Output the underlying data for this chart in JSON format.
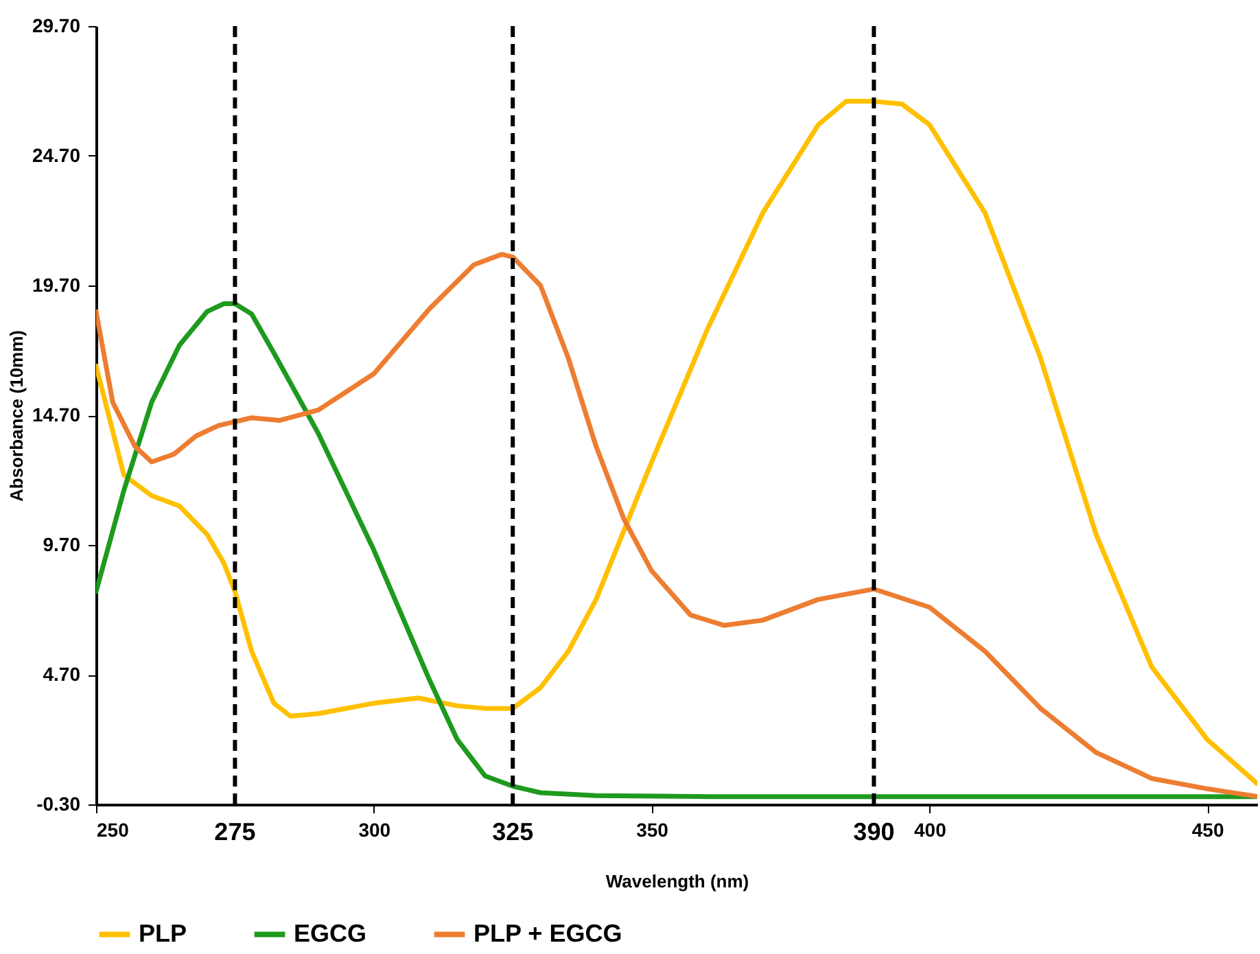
{
  "chart_data": {
    "type": "line",
    "xlabel": "Wavelength (nm)",
    "ylabel": "Absorbance (10mm)",
    "legend": "bottom",
    "xlim": [
      250,
      459
    ],
    "xticks": [
      250,
      300,
      350,
      400,
      450
    ],
    "ylim": [
      -0.3,
      29.7
    ],
    "yticks": [
      {
        "value": -0.3,
        "label": "-0.30"
      },
      {
        "value": 4.7,
        "label": "4.70"
      },
      {
        "value": 9.7,
        "label": "9.70"
      },
      {
        "value": 14.7,
        "label": "14.70"
      },
      {
        "value": 19.7,
        "label": "19.70"
      },
      {
        "value": 24.7,
        "label": "24.70"
      },
      {
        "value": 29.7,
        "label": "29.70"
      }
    ],
    "ref_lines": [
      {
        "axis": "x",
        "value": 275,
        "label": "275",
        "color": "#000000",
        "line_style": "dashed"
      },
      {
        "axis": "x",
        "value": 325,
        "label": "325",
        "color": "#000000",
        "line_style": "dashed"
      },
      {
        "axis": "x",
        "value": 390,
        "label": "390",
        "color": "#000000",
        "line_style": "dashed"
      }
    ],
    "series": [
      {
        "name": "PLP",
        "color": "#ffc000",
        "x": [
          250,
          255,
          260,
          265,
          270,
          273,
          275,
          278,
          282,
          285,
          290,
          300,
          308,
          315,
          320,
          325,
          330,
          335,
          340,
          350,
          360,
          370,
          380,
          385,
          390,
          395,
          400,
          410,
          420,
          430,
          440,
          450,
          459
        ],
        "values": [
          16.6,
          12.4,
          11.6,
          11.2,
          10.1,
          9.0,
          7.9,
          5.6,
          3.6,
          3.1,
          3.2,
          3.6,
          3.8,
          3.5,
          3.4,
          3.4,
          4.2,
          5.6,
          7.6,
          12.9,
          18.0,
          22.5,
          25.9,
          26.8,
          26.8,
          26.7,
          25.9,
          22.5,
          16.9,
          10.1,
          5.0,
          2.2,
          0.5
        ]
      },
      {
        "name": "EGCG",
        "color": "#1e9a1e",
        "x": [
          250,
          255,
          260,
          265,
          270,
          273,
          275,
          278,
          282,
          290,
          300,
          310,
          315,
          320,
          325,
          330,
          340,
          360,
          400,
          459
        ],
        "values": [
          7.9,
          11.8,
          15.2,
          17.4,
          18.7,
          19.0,
          19.0,
          18.6,
          17.1,
          14.0,
          9.5,
          4.5,
          2.2,
          0.8,
          0.4,
          0.15,
          0.04,
          0.0,
          0.0,
          0.0
        ]
      },
      {
        "name": "PLP + EGCG",
        "color": "#ed7d31",
        "x": [
          250,
          253,
          257,
          260,
          264,
          268,
          272,
          278,
          283,
          290,
          300,
          310,
          318,
          323,
          325,
          330,
          335,
          340,
          345,
          350,
          357,
          363,
          370,
          380,
          390,
          400,
          410,
          420,
          430,
          440,
          450,
          459
        ],
        "values": [
          18.7,
          15.2,
          13.5,
          12.9,
          13.2,
          13.9,
          14.3,
          14.6,
          14.5,
          14.9,
          16.3,
          18.8,
          20.5,
          20.9,
          20.8,
          19.7,
          16.9,
          13.5,
          10.7,
          8.7,
          7.0,
          6.6,
          6.8,
          7.6,
          8.0,
          7.3,
          5.6,
          3.4,
          1.7,
          0.7,
          0.3,
          0.0
        ]
      }
    ]
  }
}
